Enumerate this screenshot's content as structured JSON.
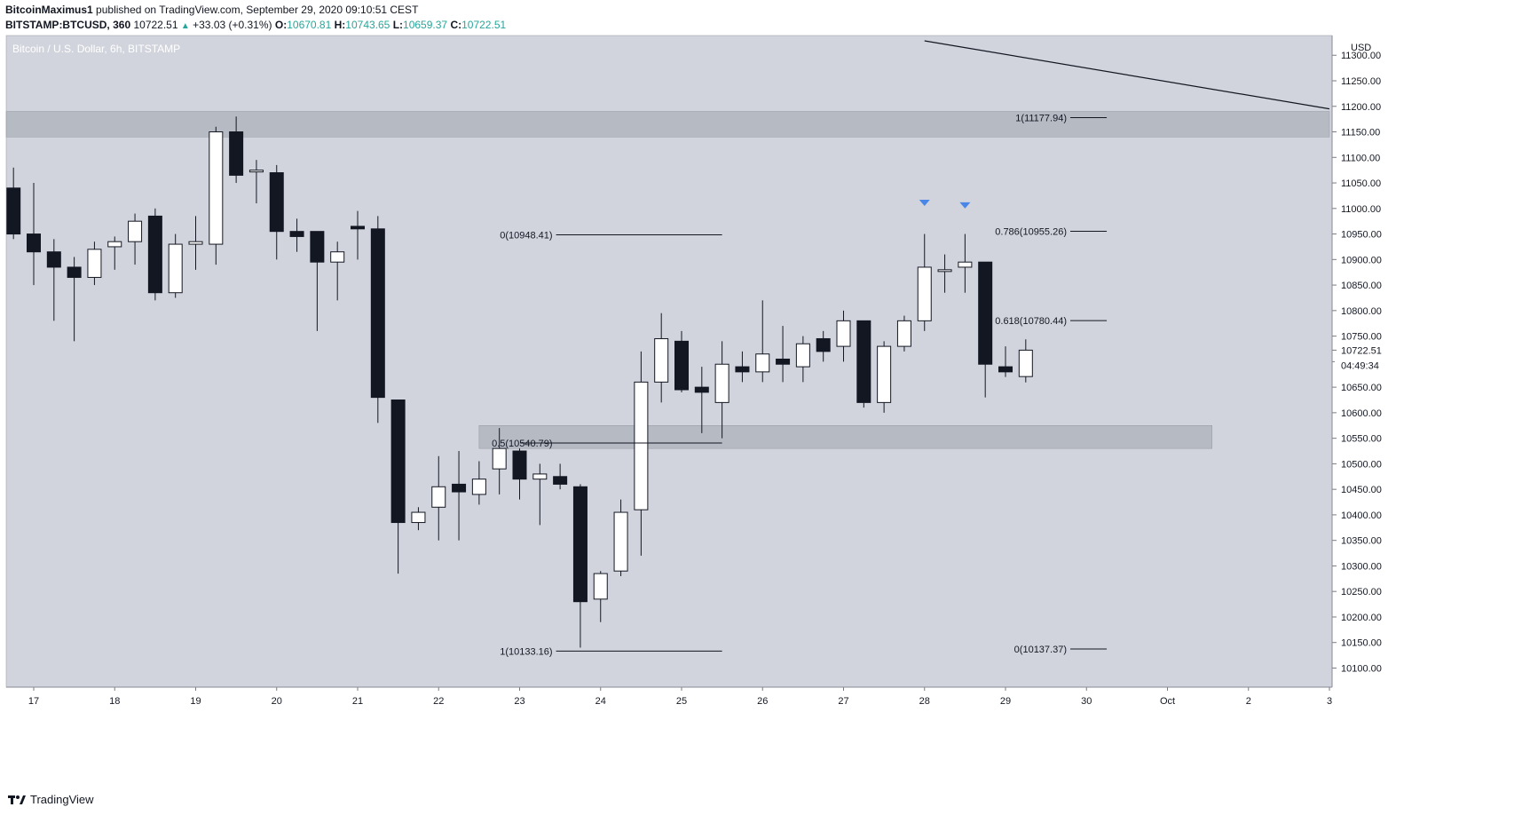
{
  "header": {
    "author": "BitcoinMaximus1",
    "published": "published on TradingView.com, September 29, 2020 09:10:51 CEST",
    "symbol": "BITSTAMP:BTCUSD, 360",
    "last": "10722.51",
    "change": "+33.03 (+0.31%)",
    "o_label": "O:",
    "o_value": "10670.81",
    "h_label": "H:",
    "h_value": "10743.65",
    "l_label": "L:",
    "l_value": "10659.37",
    "c_label": "C:",
    "c_value": "10722.51"
  },
  "footer": {
    "brand": "TradingView"
  },
  "colors": {
    "plot_bg": "#d1d4dc",
    "bear": "#131722",
    "bull": "#ffffff",
    "zone": "#b2b5be",
    "marker": "#2962ff",
    "axis_text": "#131722"
  },
  "chart_data": {
    "type": "candlestick",
    "title": "Bitcoin / U.S. Dollar, 6h, BITSTAMP",
    "currency": "USD",
    "ylim": [
      10050,
      11330
    ],
    "x_ticks": [
      "17",
      "18",
      "19",
      "20",
      "21",
      "22",
      "23",
      "24",
      "25",
      "26",
      "27",
      "28",
      "29",
      "30",
      "Oct",
      "2",
      "3"
    ],
    "y_ticks": [
      10100,
      10150,
      10200,
      10250,
      10300,
      10350,
      10400,
      10450,
      10500,
      10550,
      10600,
      10650,
      10700,
      10750,
      10800,
      10850,
      10900,
      10950,
      11000,
      11050,
      11100,
      11150,
      11200,
      11250,
      11300
    ],
    "start_day": 16.75,
    "bar_days": 0.25,
    "candles": [
      [
        11040,
        11080,
        10940,
        10950
      ],
      [
        10950,
        11050,
        10850,
        10915
      ],
      [
        10915,
        10940,
        10780,
        10885
      ],
      [
        10885,
        10905,
        10740,
        10865
      ],
      [
        10865,
        10935,
        10850,
        10920
      ],
      [
        10925,
        10945,
        10880,
        10935
      ],
      [
        10935,
        10990,
        10890,
        10975
      ],
      [
        10985,
        11000,
        10820,
        10835
      ],
      [
        10835,
        10950,
        10825,
        10930
      ],
      [
        10930,
        10985,
        10880,
        10935
      ],
      [
        10930,
        11160,
        10890,
        11150
      ],
      [
        11150,
        11180,
        11050,
        11065
      ],
      [
        11075,
        11095,
        11010,
        11075
      ],
      [
        11070,
        11085,
        10900,
        10955
      ],
      [
        10955,
        10980,
        10915,
        10945
      ],
      [
        10955,
        10955,
        10760,
        10895
      ],
      [
        10895,
        10935,
        10820,
        10915
      ],
      [
        10965,
        10995,
        10900,
        10960
      ],
      [
        10960,
        10985,
        10580,
        10630
      ],
      [
        10625,
        10625,
        10285,
        10385
      ],
      [
        10385,
        10415,
        10370,
        10405
      ],
      [
        10415,
        10515,
        10350,
        10455
      ],
      [
        10460,
        10525,
        10350,
        10445
      ],
      [
        10440,
        10505,
        10420,
        10470
      ],
      [
        10490,
        10570,
        10440,
        10530
      ],
      [
        10525,
        10530,
        10430,
        10470
      ],
      [
        10470,
        10500,
        10380,
        10480
      ],
      [
        10475,
        10500,
        10450,
        10460
      ],
      [
        10455,
        10460,
        10140,
        10230
      ],
      [
        10235,
        10290,
        10190,
        10285
      ],
      [
        10290,
        10430,
        10280,
        10405
      ],
      [
        10410,
        10720,
        10320,
        10660
      ],
      [
        10660,
        10795,
        10620,
        10745
      ],
      [
        10740,
        10760,
        10640,
        10645
      ],
      [
        10650,
        10690,
        10560,
        10640
      ],
      [
        10620,
        10740,
        10550,
        10695
      ],
      [
        10690,
        10720,
        10660,
        10680
      ],
      [
        10680,
        10820,
        10660,
        10715
      ],
      [
        10705,
        10770,
        10660,
        10695
      ],
      [
        10690,
        10750,
        10660,
        10735
      ],
      [
        10745,
        10760,
        10700,
        10720
      ],
      [
        10730,
        10800,
        10700,
        10780
      ],
      [
        10780,
        10780,
        10610,
        10620
      ],
      [
        10620,
        10740,
        10600,
        10730
      ],
      [
        10730,
        10790,
        10720,
        10780
      ],
      [
        10780,
        10950,
        10760,
        10885
      ],
      [
        10880,
        10910,
        10835,
        10880
      ],
      [
        10885,
        10950,
        10835,
        10895
      ],
      [
        10895,
        10895,
        10630,
        10695
      ],
      [
        10690,
        10730,
        10670,
        10680
      ],
      [
        10670.81,
        10743.65,
        10659.37,
        10722.51
      ]
    ],
    "zones": [
      {
        "y_from": 11140,
        "y_to": 11190,
        "x_from": 16.25,
        "x_to": 33.0
      },
      {
        "y_from": 10530,
        "y_to": 10575,
        "x_from": 22.5,
        "x_to": 31.55
      }
    ],
    "trendline": {
      "x1": 28.0,
      "y1": 11330,
      "x2": 33.0,
      "y2": 11195
    },
    "fib_left": {
      "x_from": 23.45,
      "x_to": 25.5,
      "levels": [
        {
          "label": "0(10948.41)",
          "value": 10948.41
        },
        {
          "label": "0.5(10540.79)",
          "value": 10540.79
        },
        {
          "label": "1(10133.16)",
          "value": 10133.16
        }
      ]
    },
    "fib_right": {
      "x_from": 29.8,
      "x_to": 30.25,
      "levels": [
        {
          "label": "1(11177.94)",
          "value": 11177.94
        },
        {
          "label": "0.786(10955.26)",
          "value": 10955.26
        },
        {
          "label": "0.618(10780.44)",
          "value": 10780.44
        },
        {
          "label": "0(10137.37)",
          "value": 10137.37
        }
      ]
    },
    "markers": [
      {
        "x": 28.0,
        "y": 11010
      },
      {
        "x": 28.5,
        "y": 11005
      }
    ],
    "price_label": "10722.51",
    "countdown": "04:49:34"
  }
}
